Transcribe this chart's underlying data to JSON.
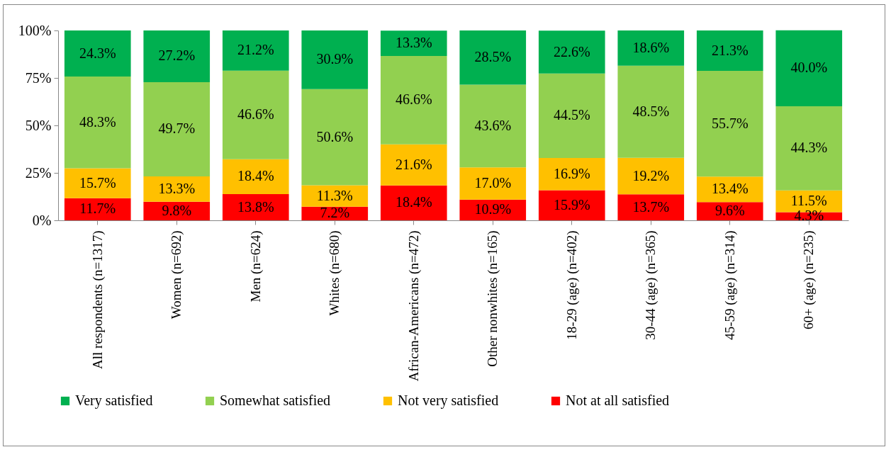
{
  "chart_data": {
    "type": "bar",
    "stacked": true,
    "legend": "bottom",
    "ylim": [
      0,
      100
    ],
    "yticks": [
      {
        "value": 0,
        "label": "0%"
      },
      {
        "value": 25,
        "label": "25%"
      },
      {
        "value": 50,
        "label": "50%"
      },
      {
        "value": 75,
        "label": "75%"
      },
      {
        "value": 100,
        "label": "100%"
      }
    ],
    "categories": [
      "All respondents (n=1317)",
      "Women (n=692)",
      "Men (n=624)",
      "Whites (n=680)",
      "African-Americans (n=472)",
      "Other nonwhites (n=165)",
      "18-29 (age) (n=402)",
      "30-44 (age) (n=365)",
      "45-59 (age) (n=314)",
      "60+ (age) (n=235)"
    ],
    "series": [
      {
        "name": "Not at all satisfied",
        "color": "#ff0000",
        "values": [
          11.7,
          9.8,
          13.8,
          7.2,
          18.4,
          10.9,
          15.9,
          13.7,
          9.6,
          4.3
        ],
        "value_labels": [
          "11.7%",
          "9.8%",
          "13.8%",
          "7.2%",
          "18.4%",
          "10.9%",
          "15.9%",
          "13.7%",
          "9.6%",
          "4.3%"
        ]
      },
      {
        "name": "Not very satisfied",
        "color": "#ffc000",
        "values": [
          15.7,
          13.3,
          18.4,
          11.3,
          21.6,
          17.0,
          16.9,
          19.2,
          13.4,
          11.5
        ],
        "value_labels": [
          "15.7%",
          "13.3%",
          "18.4%",
          "11.3%",
          "21.6%",
          "17.0%",
          "16.9%",
          "19.2%",
          "13.4%",
          "11.5%"
        ]
      },
      {
        "name": "Somewhat satisfied",
        "color": "#92d050",
        "values": [
          48.3,
          49.7,
          46.6,
          50.6,
          46.6,
          43.6,
          44.5,
          48.5,
          55.7,
          44.3
        ],
        "value_labels": [
          "48.3%",
          "49.7%",
          "46.6%",
          "50.6%",
          "46.6%",
          "43.6%",
          "44.5%",
          "48.5%",
          "55.7%",
          "44.3%"
        ]
      },
      {
        "name": "Very satisfied",
        "color": "#00b050",
        "values": [
          24.3,
          27.2,
          21.2,
          30.9,
          13.3,
          28.5,
          22.6,
          18.6,
          21.3,
          40.0
        ],
        "value_labels": [
          "24.3%",
          "27.2%",
          "21.2%",
          "30.9%",
          "13.3%",
          "28.5%",
          "22.6%",
          "18.6%",
          "21.3%",
          "40.0%"
        ]
      }
    ]
  }
}
